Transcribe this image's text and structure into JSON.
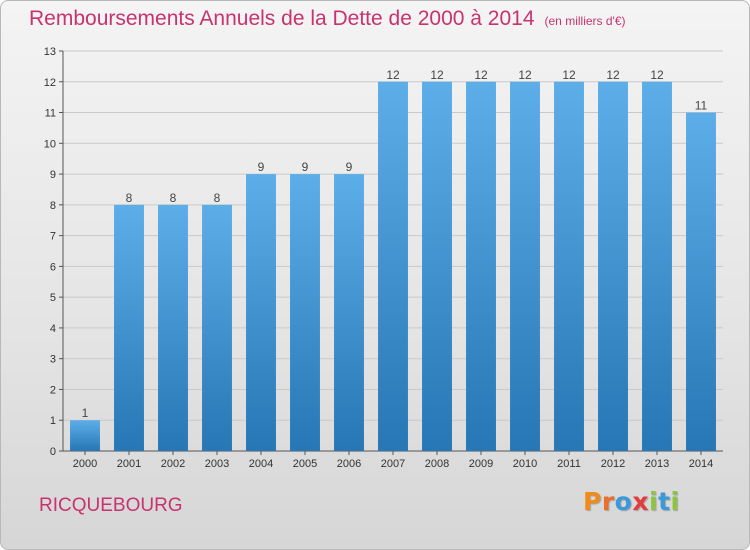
{
  "title": "Remboursements Annuels de la Dette de 2000 à 2014",
  "subtitle": "(en milliers d'€)",
  "commune": "RICQUEBOURG",
  "logo": {
    "letters": [
      "P",
      "r",
      "o",
      "x",
      "i",
      "t",
      "i"
    ],
    "colors": [
      "#f08a1c",
      "#e8702a",
      "#3a9ad9",
      "#e23c3c",
      "#8cc63f",
      "#3a9ad9",
      "#8cc63f"
    ]
  },
  "colors": {
    "bar_light": "#5daee8",
    "bar_dark": "#2776b5",
    "title": "#c8336f"
  },
  "chart_data": {
    "type": "bar",
    "title": "Remboursements Annuels de la Dette de 2000 à 2014",
    "subtitle": "(en milliers d'€)",
    "categories": [
      "2000",
      "2001",
      "2002",
      "2003",
      "2004",
      "2005",
      "2006",
      "2007",
      "2008",
      "2009",
      "2010",
      "2011",
      "2012",
      "2013",
      "2014"
    ],
    "values": [
      1,
      8,
      8,
      8,
      9,
      9,
      9,
      12,
      12,
      12,
      12,
      12,
      12,
      12,
      11
    ],
    "ylim": [
      0,
      13
    ],
    "yticks": [
      0,
      1,
      2,
      3,
      4,
      5,
      6,
      7,
      8,
      9,
      10,
      11,
      12,
      13
    ],
    "grid": true,
    "xlabel": "",
    "ylabel": ""
  }
}
